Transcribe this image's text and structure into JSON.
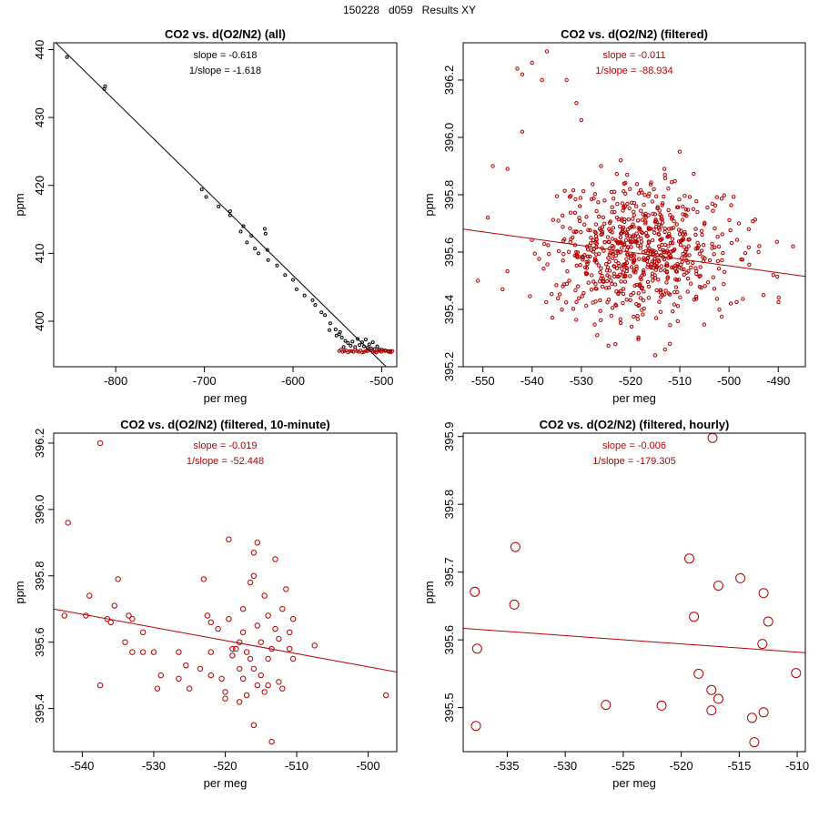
{
  "page": {
    "title": "150228   d059   Results XY"
  },
  "colors": {
    "black": "#000000",
    "red": "#b40000"
  },
  "chart_data": [
    {
      "type": "scatter",
      "title": "CO2 vs. d(O2/N2) (all)",
      "xlabel": "per meg",
      "ylabel": "ppm",
      "xlim": [
        -870,
        -483
      ],
      "ylim": [
        393.3,
        441
      ],
      "xticks": [
        -800,
        -700,
        -600,
        -500
      ],
      "yticks": [
        400,
        410,
        420,
        430,
        440
      ],
      "annotations": [
        "slope = -0.618",
        "1/slope = -1.618"
      ],
      "annotation_color": "#000000",
      "fit_line": {
        "x": [
          -870,
          -495
        ],
        "y": [
          441.3,
          393.3
        ],
        "color": "#000000"
      },
      "marker_size": "tiny",
      "series": [
        {
          "color": "#000000",
          "points": [
            [
              -855,
              438.9
            ],
            [
              -812,
              434.6
            ],
            [
              -813,
              434.2
            ],
            [
              -703,
              419.4
            ],
            [
              -698,
              418.3
            ],
            [
              -684,
              416.9
            ],
            [
              -671,
              416.2
            ],
            [
              -671,
              415.6
            ],
            [
              -656,
              414
            ],
            [
              -659,
              413.2
            ],
            [
              -647,
              412.6
            ],
            [
              -652,
              411.6
            ],
            [
              -643,
              410.7
            ],
            [
              -632,
              413.6
            ],
            [
              -631,
              412.9
            ],
            [
              -629,
              410.5
            ],
            [
              -639,
              410
            ],
            [
              -628,
              409
            ],
            [
              -618,
              408.2
            ],
            [
              -609,
              406.8
            ],
            [
              -600,
              406.1
            ],
            [
              -596,
              404.7
            ],
            [
              -587,
              403.8
            ],
            [
              -578,
              403.1
            ],
            [
              -575,
              402.4
            ],
            [
              -568,
              401.3
            ],
            [
              -564,
              400.9
            ],
            [
              -558,
              399.7
            ],
            [
              -552,
              398.8
            ],
            [
              -548,
              398.1
            ],
            [
              -545,
              397.6
            ],
            [
              -541,
              397.1
            ],
            [
              -538,
              396.8
            ],
            [
              -535,
              396.4
            ],
            [
              -530,
              396.2
            ],
            [
              -525,
              396.5
            ],
            [
              -520,
              396.3
            ],
            [
              -516,
              396.1
            ],
            [
              -512,
              396
            ],
            [
              -508,
              395.9
            ],
            [
              -503,
              395.8
            ],
            [
              -500,
              395.8
            ],
            [
              -496,
              395.7
            ],
            [
              -493,
              395.6
            ],
            [
              -490,
              395.6
            ],
            [
              -543,
              396.2
            ],
            [
              -533,
              397
            ],
            [
              -527,
              397.4
            ],
            [
              -522,
              396.9
            ],
            [
              -518,
              397.3
            ],
            [
              -514,
              396.6
            ],
            [
              -510,
              396.9
            ],
            [
              -505,
              396.3
            ],
            [
              -547,
              398.4
            ],
            [
              -551,
              397.9
            ],
            [
              -559,
              398.7
            ]
          ]
        },
        {
          "color": "#b40000",
          "points": [
            [
              -548,
              395.6
            ],
            [
              -544,
              395.5
            ],
            [
              -540,
              395.7
            ],
            [
              -536,
              395.6
            ],
            [
              -532,
              395.5
            ],
            [
              -528,
              395.6
            ],
            [
              -524,
              395.7
            ],
            [
              -520,
              395.5
            ],
            [
              -516,
              395.6
            ],
            [
              -512,
              395.7
            ],
            [
              -508,
              395.5
            ],
            [
              -504,
              395.6
            ],
            [
              -500,
              395.5
            ],
            [
              -496,
              395.6
            ],
            [
              -492,
              395.5
            ],
            [
              -488,
              395.6
            ],
            [
              -546,
              395.8
            ],
            [
              -538,
              395.4
            ],
            [
              -530,
              395.8
            ],
            [
              -522,
              395.4
            ],
            [
              -514,
              395.8
            ],
            [
              -506,
              395.4
            ],
            [
              -498,
              395.7
            ],
            [
              -490,
              395.4
            ],
            [
              -534,
              395.6
            ],
            [
              -518,
              395.6
            ],
            [
              -510,
              395.5
            ],
            [
              -526,
              395.5
            ],
            [
              -542,
              395.6
            ],
            [
              -502,
              395.6
            ]
          ]
        }
      ]
    },
    {
      "type": "scatter",
      "title": "CO2 vs. d(O2/N2) (filtered)",
      "xlabel": "per meg",
      "ylabel": "ppm",
      "xlim": [
        -554,
        -484.5
      ],
      "ylim": [
        395.2,
        396.33
      ],
      "xticks": [
        -550,
        -540,
        -530,
        -520,
        -510,
        -500,
        -490
      ],
      "yticks": [
        395.2,
        395.4,
        395.6,
        395.8,
        396.0,
        396.2
      ],
      "ytick_labels": [
        "395.2",
        "395.4",
        "395.6",
        "395.8",
        "396.0",
        "396.2"
      ],
      "annotations": [
        "slope = -0.011",
        "1/slope = -88.934"
      ],
      "annotation_color": "#b40000",
      "fit_line": {
        "x": [
          -554,
          -484.5
        ],
        "y": [
          395.68,
          395.515
        ],
        "color": "#b40000"
      },
      "marker_size": "small",
      "cloud": {
        "n": 720,
        "cx": -518,
        "cy": 395.6,
        "sx": 9,
        "sy": 0.115,
        "seed": 7
      },
      "series": [
        {
          "color": "#b40000",
          "points": [
            [
              -537,
              396.3
            ],
            [
              -540,
              396.26
            ],
            [
              -543,
              396.24
            ],
            [
              -542,
              396.22
            ],
            [
              -538,
              396.2
            ],
            [
              -533,
              396.2
            ],
            [
              -531,
              396.12
            ],
            [
              -530,
              396.06
            ],
            [
              -542,
              396.02
            ],
            [
              -548,
              395.9
            ],
            [
              -545,
              395.89
            ],
            [
              -549,
              395.72
            ],
            [
              -551,
              395.5
            ],
            [
              -487,
              395.62
            ],
            [
              -493,
              395.45
            ],
            [
              -494,
              395.6
            ],
            [
              -496,
              395.68
            ],
            [
              -491,
              395.52
            ],
            [
              -515,
              395.24
            ],
            [
              -513,
              395.26
            ],
            [
              -512,
              395.28
            ],
            [
              -526,
              395.9
            ],
            [
              -522,
              395.92
            ],
            [
              -510,
              395.95
            ],
            [
              -498,
              395.7
            ],
            [
              -546,
              395.47
            ]
          ]
        }
      ]
    },
    {
      "type": "scatter",
      "title": "CO2 vs. d(O2/N2) (filtered, 10-minute)",
      "xlabel": "per meg",
      "ylabel": "ppm",
      "xlim": [
        -544,
        -496
      ],
      "ylim": [
        395.27,
        396.23
      ],
      "xticks": [
        -540,
        -530,
        -520,
        -510,
        -500
      ],
      "yticks": [
        395.4,
        395.6,
        395.8,
        396.0,
        396.2
      ],
      "ytick_labels": [
        "395.4",
        "395.6",
        "395.8",
        "396.0",
        "396.2"
      ],
      "annotations": [
        "slope = -0.019",
        "1/slope = -52.448"
      ],
      "annotation_color": "#b40000",
      "fit_line": {
        "x": [
          -544,
          -496
        ],
        "y": [
          395.7,
          395.51
        ],
        "color": "#b40000"
      },
      "marker_size": "medium",
      "series": [
        {
          "color": "#b40000",
          "points": [
            [
              -537.5,
              396.2
            ],
            [
              -542,
              395.96
            ],
            [
              -542.5,
              395.68
            ],
            [
              -539,
              395.74
            ],
            [
              -539.5,
              395.68
            ],
            [
              -537.5,
              395.47
            ],
            [
              -536.5,
              395.67
            ],
            [
              -535.5,
              395.71
            ],
            [
              -536,
              395.66
            ],
            [
              -535,
              395.79
            ],
            [
              -533.5,
              395.68
            ],
            [
              -533,
              395.67
            ],
            [
              -534,
              395.6
            ],
            [
              -533,
              395.57
            ],
            [
              -531.5,
              395.57
            ],
            [
              -531.5,
              395.63
            ],
            [
              -530,
              395.57
            ],
            [
              -529.5,
              395.46
            ],
            [
              -529,
              395.5
            ],
            [
              -526.5,
              395.57
            ],
            [
              -526.5,
              395.49
            ],
            [
              -525.5,
              395.53
            ],
            [
              -523,
              395.79
            ],
            [
              -522.5,
              395.68
            ],
            [
              -522,
              395.66
            ],
            [
              -522,
              395.57
            ],
            [
              -522,
              395.5
            ],
            [
              -521,
              395.64
            ],
            [
              -520.5,
              395.49
            ],
            [
              -520,
              395.45
            ],
            [
              -519.5,
              395.91
            ],
            [
              -519.5,
              395.67
            ],
            [
              -519,
              395.58
            ],
            [
              -518.5,
              395.58
            ],
            [
              -518,
              395.6
            ],
            [
              -518,
              395.52
            ],
            [
              -517.5,
              395.7
            ],
            [
              -517.5,
              395.63
            ],
            [
              -517,
              395.57
            ],
            [
              -516.5,
              395.78
            ],
            [
              -516,
              395.87
            ],
            [
              -516,
              395.8
            ],
            [
              -516,
              395.52
            ],
            [
              -515.5,
              395.9
            ],
            [
              -515.5,
              395.65
            ],
            [
              -515,
              395.6
            ],
            [
              -515,
              395.5
            ],
            [
              -514.5,
              395.74
            ],
            [
              -514.5,
              395.45
            ],
            [
              -514,
              395.68
            ],
            [
              -514,
              395.55
            ],
            [
              -513.5,
              395.3
            ],
            [
              -513,
              395.85
            ],
            [
              -513,
              395.64
            ],
            [
              -512.5,
              395.48
            ],
            [
              -512,
              395.7
            ],
            [
              -511.5,
              395.76
            ],
            [
              -511,
              395.58
            ],
            [
              -510.5,
              395.67
            ],
            [
              -510.5,
              395.55
            ],
            [
              -507.5,
              395.59
            ],
            [
              -497.5,
              395.44
            ],
            [
              -516,
              395.35
            ],
            [
              -518,
              395.42
            ],
            [
              -520,
              395.43
            ],
            [
              -523.5,
              395.52
            ],
            [
              -525,
              395.46
            ],
            [
              -517,
              395.44
            ],
            [
              -515.5,
              395.47
            ],
            [
              -519,
              395.56
            ],
            [
              -512.5,
              395.61
            ],
            [
              -511,
              395.63
            ],
            [
              -516.5,
              395.55
            ],
            [
              -513.5,
              395.58
            ],
            [
              -517.5,
              395.49
            ],
            [
              -514,
              395.47
            ],
            [
              -512,
              395.46
            ]
          ]
        }
      ]
    },
    {
      "type": "scatter",
      "title": "CO2 vs. d(O2/N2) (filtered, hourly)",
      "xlabel": "per meg",
      "ylabel": "ppm",
      "xlim": [
        -538.8,
        -509.3
      ],
      "ylim": [
        395.435,
        395.905
      ],
      "xticks": [
        -535,
        -530,
        -525,
        -520,
        -515,
        -510
      ],
      "yticks": [
        395.5,
        395.6,
        395.7,
        395.8,
        395.9
      ],
      "ytick_labels": [
        "395.5",
        "395.6",
        "395.7",
        "395.8",
        "395.9"
      ],
      "annotations": [
        "slope = -0.006",
        "1/slope = -179.305"
      ],
      "annotation_color": "#b40000",
      "fit_line": {
        "x": [
          -538.8,
          -509.3
        ],
        "y": [
          395.617,
          395.581
        ],
        "color": "#b40000"
      },
      "marker_size": "large",
      "series": [
        {
          "color": "#b40000",
          "points": [
            [
              -537.8,
              395.671
            ],
            [
              -537.6,
              395.587
            ],
            [
              -537.7,
              395.473
            ],
            [
              -534.3,
              395.737
            ],
            [
              -534.4,
              395.652
            ],
            [
              -526.5,
              395.504
            ],
            [
              -521.7,
              395.503
            ],
            [
              -519.3,
              395.72
            ],
            [
              -518.9,
              395.634
            ],
            [
              -518.5,
              395.55
            ],
            [
              -517.3,
              395.898
            ],
            [
              -517.4,
              395.526
            ],
            [
              -517.4,
              395.496
            ],
            [
              -516.8,
              395.68
            ],
            [
              -516.8,
              395.513
            ],
            [
              -514.9,
              395.691
            ],
            [
              -513.9,
              395.485
            ],
            [
              -513.7,
              395.449
            ],
            [
              -513,
              395.594
            ],
            [
              -512.9,
              395.669
            ],
            [
              -512.9,
              395.493
            ],
            [
              -512.5,
              395.627
            ],
            [
              -510.1,
              395.551
            ]
          ]
        }
      ]
    }
  ]
}
